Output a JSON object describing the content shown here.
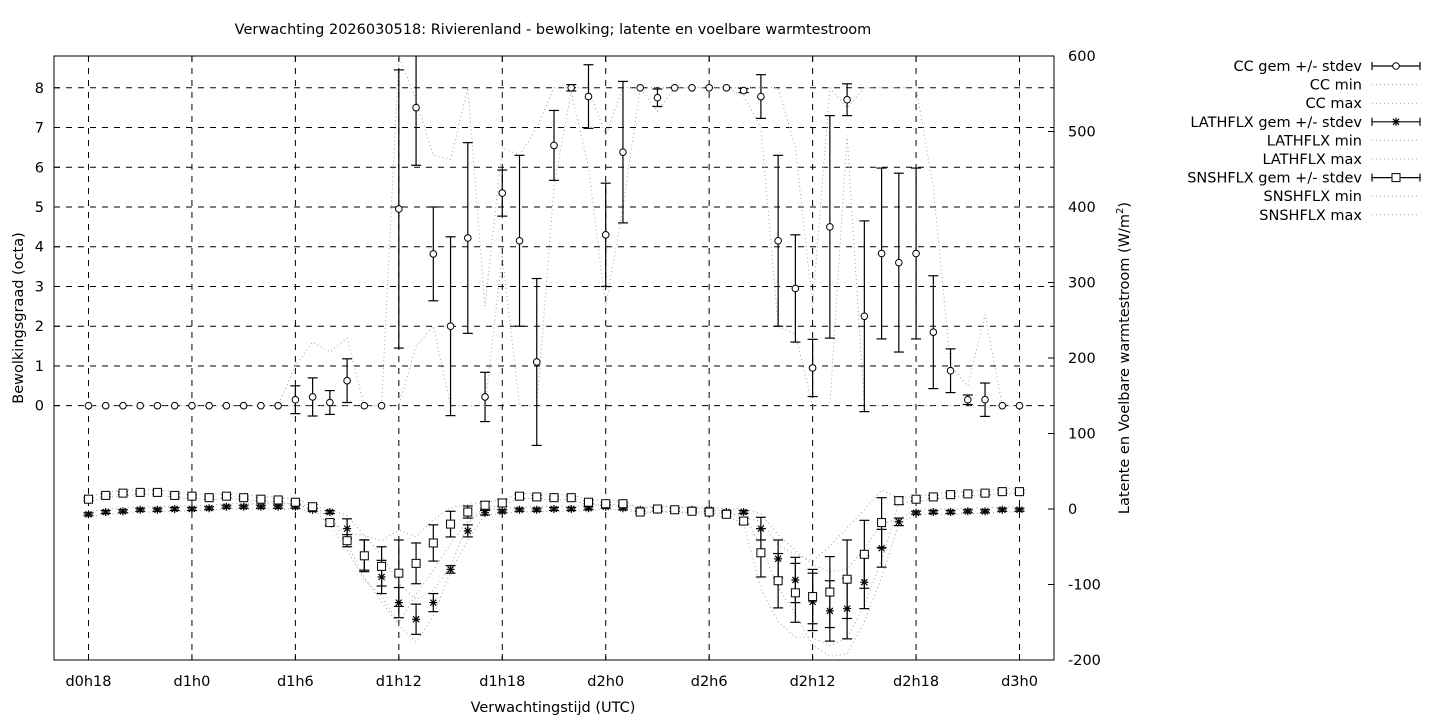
{
  "chart_data": {
    "type": "line",
    "title": "Verwachting 2026030518: Rivierenland - bewolking; latente en voelbare warmtestroom",
    "xlabel": "Verwachtingstijd (UTC)",
    "ylabel": "Bewolkingsgraad (octa)",
    "y2label": "Latente en Voelbare warmtestroom (W/m",
    "y2label_sup": "2",
    "y2label_end": ")",
    "xlim_hours": [
      16,
      74
    ],
    "ylim": [
      -6.4,
      8.8
    ],
    "y2lim": [
      -200,
      600
    ],
    "grid": true,
    "legend_placement": "outside-right-top",
    "x_ticks": [
      {
        "hour": 18,
        "label": "d0h18"
      },
      {
        "hour": 24,
        "label": "d1h0"
      },
      {
        "hour": 30,
        "label": "d1h6"
      },
      {
        "hour": 36,
        "label": "d1h12"
      },
      {
        "hour": 42,
        "label": "d1h18"
      },
      {
        "hour": 48,
        "label": "d2h0"
      },
      {
        "hour": 54,
        "label": "d2h6"
      },
      {
        "hour": 60,
        "label": "d2h12"
      },
      {
        "hour": 66,
        "label": "d2h18"
      },
      {
        "hour": 72,
        "label": "d3h0"
      }
    ],
    "y_ticks": [
      "0",
      "1",
      "2",
      "3",
      "4",
      "5",
      "6",
      "7",
      "8"
    ],
    "y2_ticks": [
      "-200",
      "-100",
      "0",
      "100",
      "200",
      "300",
      "400",
      "500",
      "600"
    ],
    "x_hours_start": 18,
    "series": [
      {
        "name": "CC gem +/- stdev",
        "axis": "y",
        "style": "errorbar",
        "marker": "circle",
        "values": [
          0,
          0,
          0,
          0,
          0,
          0,
          0,
          0,
          0,
          0,
          0,
          0,
          0.15,
          0.22,
          0.08,
          0.63,
          0,
          0,
          4.95,
          7.5,
          3.82,
          2.0,
          4.22,
          0.22,
          5.35,
          4.15,
          1.1,
          6.55,
          8.0,
          7.78,
          4.3,
          6.38,
          8.0,
          7.75,
          8.0,
          8.0,
          8.0,
          8.0,
          7.93,
          7.78,
          4.15,
          2.95,
          0.95,
          4.5,
          7.7,
          2.25,
          3.83,
          3.6,
          3.83,
          1.85,
          0.88,
          0.15,
          0.15,
          0,
          0
        ],
        "stdev": [
          0,
          0,
          0,
          0,
          0,
          0,
          0,
          0,
          0,
          0,
          0,
          0,
          0.35,
          0.48,
          0.3,
          0.55,
          0,
          0,
          3.5,
          1.45,
          1.18,
          2.25,
          2.4,
          0.62,
          0.58,
          2.15,
          2.1,
          0.88,
          0.08,
          0.8,
          1.3,
          1.78,
          0,
          0.22,
          0,
          0,
          0,
          0,
          0.05,
          0.55,
          2.15,
          1.35,
          0.72,
          2.8,
          0.4,
          2.4,
          2.15,
          2.25,
          2.15,
          1.42,
          0.55,
          0.12,
          0.42,
          0,
          0
        ]
      },
      {
        "name": "CC min",
        "axis": "y",
        "style": "dotted",
        "values": [
          0,
          0,
          0,
          0,
          0,
          0,
          0,
          0,
          0,
          0,
          0,
          0,
          0,
          0,
          0,
          0,
          0,
          0,
          0,
          1.5,
          2.0,
          0,
          0,
          0,
          3.8,
          0,
          0,
          5.5,
          7.9,
          6.0,
          2.5,
          5.0,
          8,
          7.4,
          8,
          8,
          8,
          8,
          7.8,
          7.0,
          2.0,
          1.8,
          0,
          0,
          6.8,
          0,
          0,
          0,
          0,
          0,
          0,
          0,
          0,
          0,
          0
        ]
      },
      {
        "name": "CC max",
        "axis": "y",
        "style": "dotted",
        "values": [
          0,
          0,
          0,
          0,
          0,
          0,
          0,
          0,
          0,
          0,
          0,
          0,
          1.0,
          1.6,
          1.35,
          1.7,
          0,
          0,
          8.8,
          7.7,
          6.3,
          6.2,
          8,
          2.5,
          6.5,
          6.3,
          7.0,
          8,
          8,
          8,
          6.8,
          8,
          8,
          8,
          8,
          8,
          8,
          8,
          8,
          8,
          8,
          6.5,
          2.5,
          8,
          7.5,
          8,
          8,
          8,
          8,
          5.5,
          1.0,
          0.5,
          2.3,
          0,
          0
        ]
      },
      {
        "name": "LATHFLX gem +/- stdev",
        "axis": "y2",
        "style": "errorbar",
        "marker": "star",
        "values": [
          -7,
          -4,
          -3,
          -1,
          -1,
          0,
          0,
          1,
          3,
          3,
          3,
          3,
          3,
          -1,
          -4,
          -26,
          -61,
          -90,
          -124,
          -146,
          -124,
          -80,
          -29,
          -5,
          -3,
          -1,
          -1,
          0,
          0,
          1,
          3,
          1,
          -1,
          -1,
          -1,
          -1,
          -1,
          -4,
          -4,
          -26,
          -66,
          -94,
          -123,
          -135,
          -132,
          -97,
          -52,
          -17,
          -5,
          -4,
          -4,
          -3,
          -3,
          -1,
          -1
        ],
        "stdev": [
          2,
          2,
          2,
          2,
          2,
          2,
          2,
          2,
          2,
          2,
          2,
          2,
          2,
          2,
          2,
          13,
          20,
          22,
          20,
          20,
          12,
          5,
          8,
          3,
          2,
          2,
          2,
          2,
          2,
          2,
          2,
          2,
          2,
          2,
          2,
          2,
          2,
          2,
          2,
          15,
          25,
          30,
          38,
          40,
          40,
          35,
          25,
          5,
          2,
          2,
          2,
          2,
          2,
          2,
          2
        ]
      },
      {
        "name": "LATHFLX min",
        "axis": "y2",
        "style": "dotted",
        "values": [
          -10,
          -7,
          -6,
          -4,
          -4,
          -3,
          -3,
          -2,
          0,
          0,
          0,
          0,
          0,
          -4,
          -7,
          -46,
          -91,
          -123,
          -154,
          -176,
          -142,
          -83,
          -41,
          -8,
          -6,
          -4,
          -4,
          -3,
          -3,
          -2,
          0,
          -2,
          -4,
          -4,
          -4,
          -4,
          -4,
          -7,
          -7,
          -49,
          -104,
          -139,
          -180,
          -195,
          -192,
          -150,
          -90,
          -20,
          -8,
          -7,
          -7,
          -6,
          -6,
          -4,
          -4
        ]
      },
      {
        "name": "LATHFLX max",
        "axis": "y2",
        "style": "dotted",
        "values": [
          -3,
          0,
          1,
          3,
          3,
          4,
          4,
          5,
          7,
          7,
          7,
          7,
          7,
          3,
          0,
          -9,
          -35,
          -61,
          -98,
          -120,
          -108,
          -76,
          -19,
          -1,
          1,
          3,
          3,
          4,
          4,
          5,
          7,
          5,
          3,
          3,
          3,
          3,
          3,
          0,
          0,
          -6,
          -34,
          -55,
          -74,
          -83,
          -80,
          -52,
          -20,
          -13,
          -1,
          0,
          0,
          1,
          1,
          3,
          3
        ]
      },
      {
        "name": "SNSHFLX gem +/- stdev",
        "axis": "y2",
        "style": "errorbar",
        "marker": "square",
        "values": [
          13,
          18,
          21,
          22,
          22,
          18,
          17,
          15,
          17,
          15,
          13,
          12,
          9,
          3,
          -18,
          -42,
          -62,
          -76,
          -85,
          -72,
          -45,
          -20,
          -4,
          5,
          8,
          17,
          16,
          15,
          15,
          9,
          7,
          7,
          -4,
          0,
          -1,
          -3,
          -4,
          -7,
          -16,
          -58,
          -95,
          -111,
          -116,
          -110,
          -93,
          -60,
          -18,
          11,
          13,
          16,
          19,
          20,
          21,
          23,
          23
        ],
        "stdev": [
          2,
          2,
          2,
          2,
          2,
          2,
          2,
          2,
          2,
          2,
          2,
          2,
          2,
          3,
          4,
          8,
          21,
          26,
          44,
          27,
          24,
          17,
          8,
          5,
          5,
          3,
          2,
          2,
          2,
          2,
          2,
          2,
          2,
          2,
          2,
          2,
          2,
          3,
          4,
          32,
          36,
          39,
          36,
          47,
          52,
          45,
          33,
          5,
          2,
          2,
          2,
          2,
          2,
          2,
          2
        ]
      },
      {
        "name": "SNSHFLX min",
        "axis": "y2",
        "style": "dotted",
        "values": [
          10,
          15,
          18,
          19,
          19,
          15,
          14,
          12,
          14,
          12,
          10,
          9,
          6,
          0,
          -21,
          -54,
          -94,
          -115,
          -151,
          -113,
          -81,
          -46,
          -16,
          2,
          5,
          14,
          13,
          12,
          12,
          6,
          4,
          4,
          -7,
          -3,
          -4,
          -6,
          -7,
          -10,
          -19,
          -106,
          -149,
          -170,
          -170,
          -181,
          -171,
          -128,
          -68,
          8,
          10,
          13,
          16,
          17,
          18,
          20,
          20
        ]
      },
      {
        "name": "SNSHFLX max",
        "axis": "y2",
        "style": "dotted",
        "values": [
          17,
          22,
          25,
          26,
          26,
          22,
          21,
          19,
          21,
          19,
          17,
          16,
          13,
          7,
          -14,
          -32,
          -35,
          -42,
          -28,
          -37,
          -14,
          2,
          6,
          9,
          12,
          21,
          20,
          19,
          19,
          13,
          11,
          11,
          0,
          4,
          3,
          1,
          0,
          -3,
          -12,
          -16,
          -48,
          -60,
          -69,
          -49,
          -25,
          -1,
          25,
          15,
          17,
          20,
          23,
          24,
          25,
          27,
          27
        ]
      }
    ],
    "colors": {
      "marks": "#000000",
      "minmax": "#a0a0a0",
      "grid": "#000000"
    }
  }
}
